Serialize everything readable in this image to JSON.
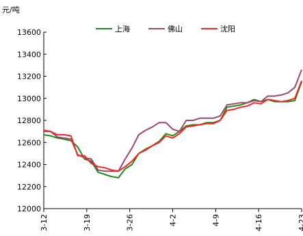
{
  "chart_data": {
    "type": "line",
    "y_unit_label": "元/吨",
    "ylim": [
      12000,
      13600
    ],
    "y_ticks": [
      12000,
      12200,
      12400,
      12600,
      12800,
      13000,
      13200,
      13400,
      13600
    ],
    "x_tick_labels": [
      "3-12",
      "3-19",
      "3-26",
      "4-2",
      "4-9",
      "4-16",
      "4-23"
    ],
    "legend_position": "top",
    "grid": false,
    "series": [
      {
        "name": "上海",
        "color": "#1a8c1a",
        "values": [
          12670,
          12660,
          12640,
          12630,
          12615,
          12560,
          12450,
          12430,
          12330,
          12310,
          12290,
          12280,
          12360,
          12400,
          12500,
          12540,
          12570,
          12610,
          12680,
          12660,
          12700,
          12750,
          12760,
          12760,
          12780,
          12780,
          12800,
          12920,
          12930,
          12940,
          12960,
          12990,
          12970,
          12990,
          12970,
          12970,
          12970,
          12980,
          13150
        ]
      },
      {
        "name": "佛山",
        "color": "#a0456a",
        "values": [
          12700,
          12700,
          12650,
          12640,
          12630,
          12490,
          12460,
          12450,
          12350,
          12340,
          12340,
          12340,
          12450,
          12550,
          12670,
          12710,
          12740,
          12780,
          12780,
          12720,
          12700,
          12800,
          12800,
          12820,
          12820,
          12820,
          12840,
          12940,
          12950,
          12960,
          12960,
          12980,
          12970,
          13020,
          13020,
          13030,
          13050,
          13100,
          13260
        ]
      },
      {
        "name": "沈阳",
        "color": "#ff2020",
        "values": [
          12710,
          12700,
          12670,
          12670,
          12660,
          12480,
          12480,
          12410,
          12380,
          12370,
          12350,
          12340,
          12380,
          12430,
          12500,
          12530,
          12570,
          12600,
          12660,
          12640,
          12680,
          12740,
          12750,
          12760,
          12770,
          12770,
          12800,
          12890,
          12900,
          12920,
          12930,
          12960,
          12950,
          12990,
          12980,
          12970,
          12980,
          13000,
          13160
        ]
      }
    ]
  }
}
